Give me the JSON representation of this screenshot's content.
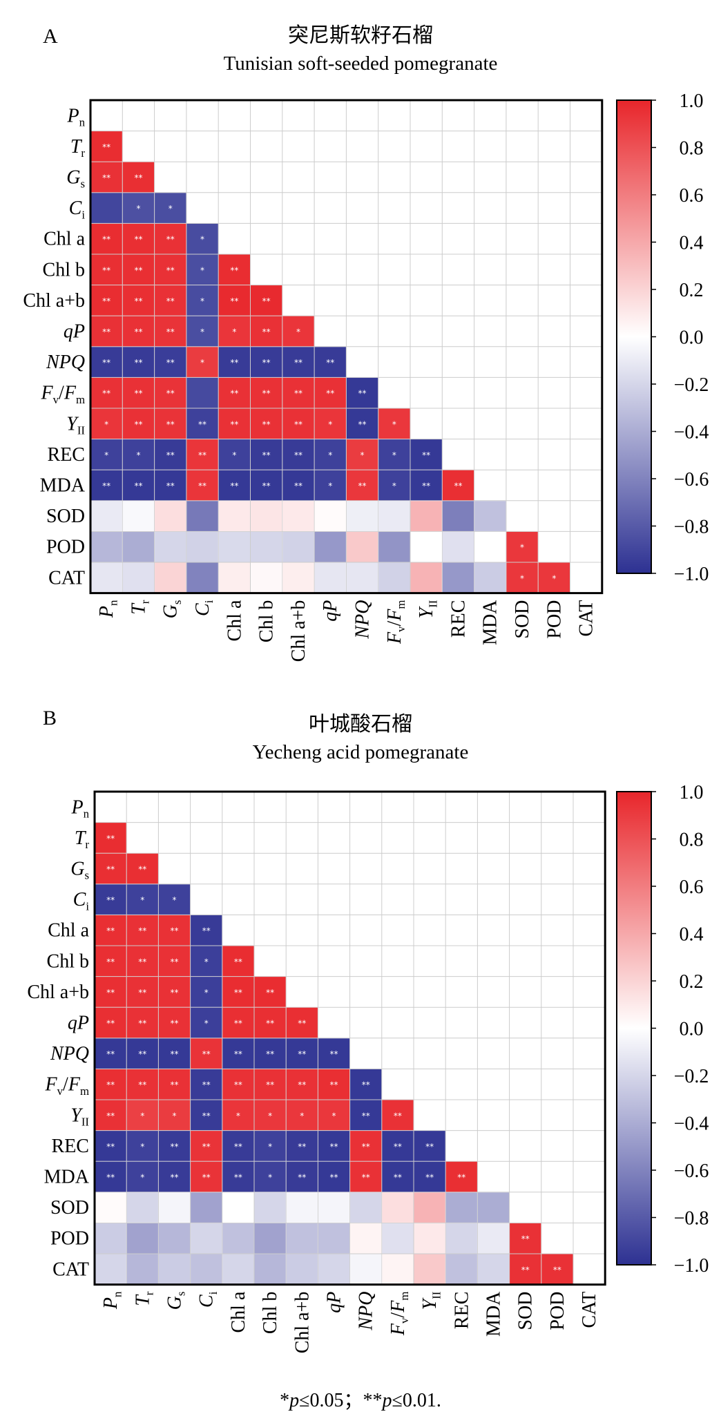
{
  "figure": {
    "footnote_parts": [
      "*",
      "p",
      "≤0.05；**",
      "p",
      "≤0.01."
    ]
  },
  "chart_data": [
    {
      "type": "heatmap",
      "panel": "A",
      "title": "突尼斯软籽石榴",
      "subtitle": "Tunisian soft-seeded pomegranate",
      "variables": [
        {
          "main": "P",
          "sub": "n",
          "italic": true
        },
        {
          "main": "T",
          "sub": "r",
          "italic": true
        },
        {
          "main": "G",
          "sub": "s",
          "italic": true
        },
        {
          "main": "C",
          "sub": "i",
          "italic": true
        },
        {
          "main": "Chl a",
          "italic": false
        },
        {
          "main": "Chl b",
          "italic": false
        },
        {
          "main": "Chl a+b",
          "italic": false
        },
        {
          "main": "qP",
          "italic": true
        },
        {
          "main": "NPQ",
          "italic": true
        },
        {
          "main": "F",
          "sub": "v",
          "mid": "/",
          "main2": "F",
          "sub2": "m",
          "italic": true
        },
        {
          "main": "Y",
          "sub": "II",
          "italic": true
        },
        {
          "main": "REC",
          "italic": false
        },
        {
          "main": "MDA",
          "italic": false
        },
        {
          "main": "SOD",
          "italic": false
        },
        {
          "main": "POD",
          "italic": false
        },
        {
          "main": "CAT",
          "italic": false
        }
      ],
      "color_range": [
        -1.0,
        1.0
      ],
      "colorbar_ticks": [
        "1.0",
        "0.8",
        "0.6",
        "0.4",
        "0.2",
        "0.0",
        "−0.2",
        "−0.4",
        "−0.6",
        "−0.8",
        "−1.0"
      ],
      "colors": {
        "positive": "#e8262b",
        "neutral": "#ffffff",
        "negative": "#2d3192",
        "grid": "#cccccc"
      },
      "values": [
        [],
        [
          0.97
        ],
        [
          0.95,
          0.96
        ],
        [
          -0.9,
          -0.85,
          -0.86
        ],
        [
          0.97,
          0.96,
          0.95,
          -0.87
        ],
        [
          0.96,
          0.96,
          0.95,
          -0.86,
          0.97
        ],
        [
          0.97,
          0.96,
          0.95,
          -0.87,
          0.98,
          0.98
        ],
        [
          0.95,
          0.95,
          0.94,
          -0.86,
          0.93,
          0.95,
          0.93
        ],
        [
          -0.95,
          -0.95,
          -0.94,
          0.9,
          -0.95,
          -0.95,
          -0.95,
          -0.95
        ],
        [
          0.95,
          0.95,
          0.94,
          -0.88,
          0.95,
          0.95,
          0.95,
          0.95,
          -0.96
        ],
        [
          0.93,
          0.95,
          0.94,
          -0.92,
          0.95,
          0.95,
          0.95,
          0.93,
          -0.96,
          0.92
        ],
        [
          -0.92,
          -0.92,
          -0.95,
          0.93,
          -0.92,
          -0.95,
          -0.95,
          -0.92,
          0.9,
          -0.92,
          -0.96
        ],
        [
          -0.96,
          -0.96,
          -0.96,
          0.93,
          -0.96,
          -0.96,
          -0.96,
          -0.92,
          0.92,
          -0.92,
          -0.96,
          0.96
        ],
        [
          -0.1,
          -0.03,
          0.15,
          -0.65,
          0.1,
          0.12,
          0.1,
          0.02,
          -0.08,
          -0.1,
          0.35,
          -0.62,
          -0.3
        ],
        [
          -0.35,
          -0.4,
          -0.2,
          -0.22,
          -0.18,
          -0.2,
          -0.22,
          -0.5,
          0.25,
          -0.52,
          0.0,
          -0.15,
          0.0,
          0.92
        ],
        [
          -0.12,
          -0.15,
          0.2,
          -0.6,
          0.08,
          0.03,
          0.08,
          -0.12,
          -0.12,
          -0.22,
          0.35,
          -0.5,
          -0.25,
          0.92,
          0.92
        ]
      ],
      "significance": [
        [],
        [
          "**"
        ],
        [
          "**",
          "**"
        ],
        [
          "",
          "*",
          "*"
        ],
        [
          "**",
          "**",
          "**",
          "*"
        ],
        [
          "**",
          "**",
          "**",
          "*",
          "**"
        ],
        [
          "**",
          "**",
          "**",
          "*",
          "**",
          "**"
        ],
        [
          "**",
          "**",
          "**",
          "*",
          "*",
          "**",
          "*"
        ],
        [
          "**",
          "**",
          "**",
          "*",
          "**",
          "**",
          "**",
          "**"
        ],
        [
          "**",
          "**",
          "**",
          "",
          "**",
          "**",
          "**",
          "**",
          "**"
        ],
        [
          "*",
          "**",
          "**",
          "**",
          "**",
          "**",
          "**",
          "*",
          "**",
          "*"
        ],
        [
          "*",
          "*",
          "**",
          "**",
          "*",
          "**",
          "**",
          "*",
          "*",
          "*",
          "**"
        ],
        [
          "**",
          "**",
          "**",
          "**",
          "**",
          "**",
          "**",
          "*",
          "**",
          "*",
          "**",
          "**"
        ],
        [
          "",
          "",
          "",
          "",
          "",
          "",
          "",
          "",
          "",
          "",
          "",
          "",
          ""
        ],
        [
          "",
          "",
          "",
          "",
          "",
          "",
          "",
          "",
          "",
          "",
          "",
          "",
          "",
          "*"
        ],
        [
          "",
          "",
          "",
          "",
          "",
          "",
          "",
          "",
          "",
          "",
          "",
          "",
          "",
          "*",
          "*"
        ]
      ]
    },
    {
      "type": "heatmap",
      "panel": "B",
      "title": "叶城酸石榴",
      "subtitle": "Yecheng acid pomegranate",
      "variables": [
        {
          "main": "P",
          "sub": "n",
          "italic": true
        },
        {
          "main": "T",
          "sub": "r",
          "italic": true
        },
        {
          "main": "G",
          "sub": "s",
          "italic": true
        },
        {
          "main": "C",
          "sub": "i",
          "italic": true
        },
        {
          "main": "Chl a",
          "italic": false
        },
        {
          "main": "Chl b",
          "italic": false
        },
        {
          "main": "Chl a+b",
          "italic": false
        },
        {
          "main": "qP",
          "italic": true
        },
        {
          "main": "NPQ",
          "italic": true
        },
        {
          "main": "F",
          "sub": "v",
          "mid": "/",
          "main2": "F",
          "sub2": "m",
          "italic": true
        },
        {
          "main": "Y",
          "sub": "II",
          "italic": true
        },
        {
          "main": "REC",
          "italic": false
        },
        {
          "main": "MDA",
          "italic": false
        },
        {
          "main": "SOD",
          "italic": false
        },
        {
          "main": "POD",
          "italic": false
        },
        {
          "main": "CAT",
          "italic": false
        }
      ],
      "color_range": [
        -1.0,
        1.0
      ],
      "colorbar_ticks": [
        "1.0",
        "0.8",
        "0.6",
        "0.4",
        "0.2",
        "0.0",
        "−0.2",
        "−0.4",
        "−0.6",
        "−0.8",
        "−1.0"
      ],
      "colors": {
        "positive": "#e8262b",
        "neutral": "#ffffff",
        "negative": "#2d3192",
        "grid": "#cccccc"
      },
      "values": [
        [],
        [
          0.97
        ],
        [
          0.96,
          0.96
        ],
        [
          -0.95,
          -0.92,
          -0.92
        ],
        [
          0.96,
          0.95,
          0.95,
          -0.95
        ],
        [
          0.96,
          0.95,
          0.95,
          -0.93,
          0.97
        ],
        [
          0.96,
          0.95,
          0.95,
          -0.93,
          0.97,
          0.97
        ],
        [
          0.96,
          0.95,
          0.95,
          -0.93,
          0.96,
          0.96,
          0.96
        ],
        [
          -0.96,
          -0.96,
          -0.96,
          0.94,
          -0.96,
          -0.96,
          -0.96,
          -0.96
        ],
        [
          0.96,
          0.95,
          0.95,
          -0.95,
          0.95,
          0.95,
          0.95,
          0.96,
          -0.96
        ],
        [
          0.95,
          0.88,
          0.9,
          -0.95,
          0.93,
          0.92,
          0.92,
          0.92,
          -0.96,
          0.95
        ],
        [
          -0.96,
          -0.92,
          -0.95,
          0.94,
          -0.95,
          -0.92,
          -0.95,
          -0.96,
          0.95,
          -0.96,
          -0.96
        ],
        [
          -0.96,
          -0.92,
          -0.95,
          0.94,
          -0.95,
          -0.92,
          -0.95,
          -0.96,
          0.95,
          -0.96,
          -0.96,
          0.96
        ],
        [
          0.02,
          -0.2,
          -0.05,
          -0.45,
          0.0,
          -0.2,
          -0.05,
          -0.05,
          -0.2,
          0.15,
          0.35,
          -0.4,
          -0.4
        ],
        [
          -0.25,
          -0.45,
          -0.35,
          -0.2,
          -0.3,
          -0.45,
          -0.3,
          -0.3,
          0.05,
          -0.15,
          0.1,
          -0.2,
          -0.1,
          0.95
        ],
        [
          -0.2,
          -0.35,
          -0.25,
          -0.3,
          -0.2,
          -0.35,
          -0.25,
          -0.2,
          -0.05,
          0.05,
          0.25,
          -0.3,
          -0.2,
          0.95,
          0.95
        ]
      ],
      "significance": [
        [],
        [
          "**"
        ],
        [
          "**",
          "**"
        ],
        [
          "**",
          "*",
          "*"
        ],
        [
          "**",
          "**",
          "**",
          "**"
        ],
        [
          "**",
          "**",
          "**",
          "*",
          "**"
        ],
        [
          "**",
          "**",
          "**",
          "*",
          "**",
          "**"
        ],
        [
          "**",
          "**",
          "**",
          "*",
          "**",
          "**",
          "**"
        ],
        [
          "**",
          "**",
          "**",
          "**",
          "**",
          "**",
          "**",
          "**"
        ],
        [
          "**",
          "**",
          "**",
          "**",
          "**",
          "**",
          "**",
          "**",
          "**"
        ],
        [
          "**",
          "*",
          "*",
          "**",
          "*",
          "*",
          "*",
          "*",
          "**",
          "**"
        ],
        [
          "**",
          "*",
          "**",
          "**",
          "**",
          "*",
          "**",
          "**",
          "**",
          "**",
          "**"
        ],
        [
          "**",
          "*",
          "**",
          "**",
          "**",
          "*",
          "**",
          "**",
          "**",
          "**",
          "**",
          "**"
        ],
        [
          "",
          "",
          "",
          "",
          "",
          "",
          "",
          "",
          "",
          "",
          "",
          "",
          ""
        ],
        [
          "",
          "",
          "",
          "",
          "",
          "",
          "",
          "",
          "",
          "",
          "",
          "",
          "",
          "**"
        ],
        [
          "",
          "",
          "",
          "",
          "",
          "",
          "",
          "",
          "",
          "",
          "",
          "",
          "",
          "**",
          "**"
        ]
      ]
    }
  ]
}
